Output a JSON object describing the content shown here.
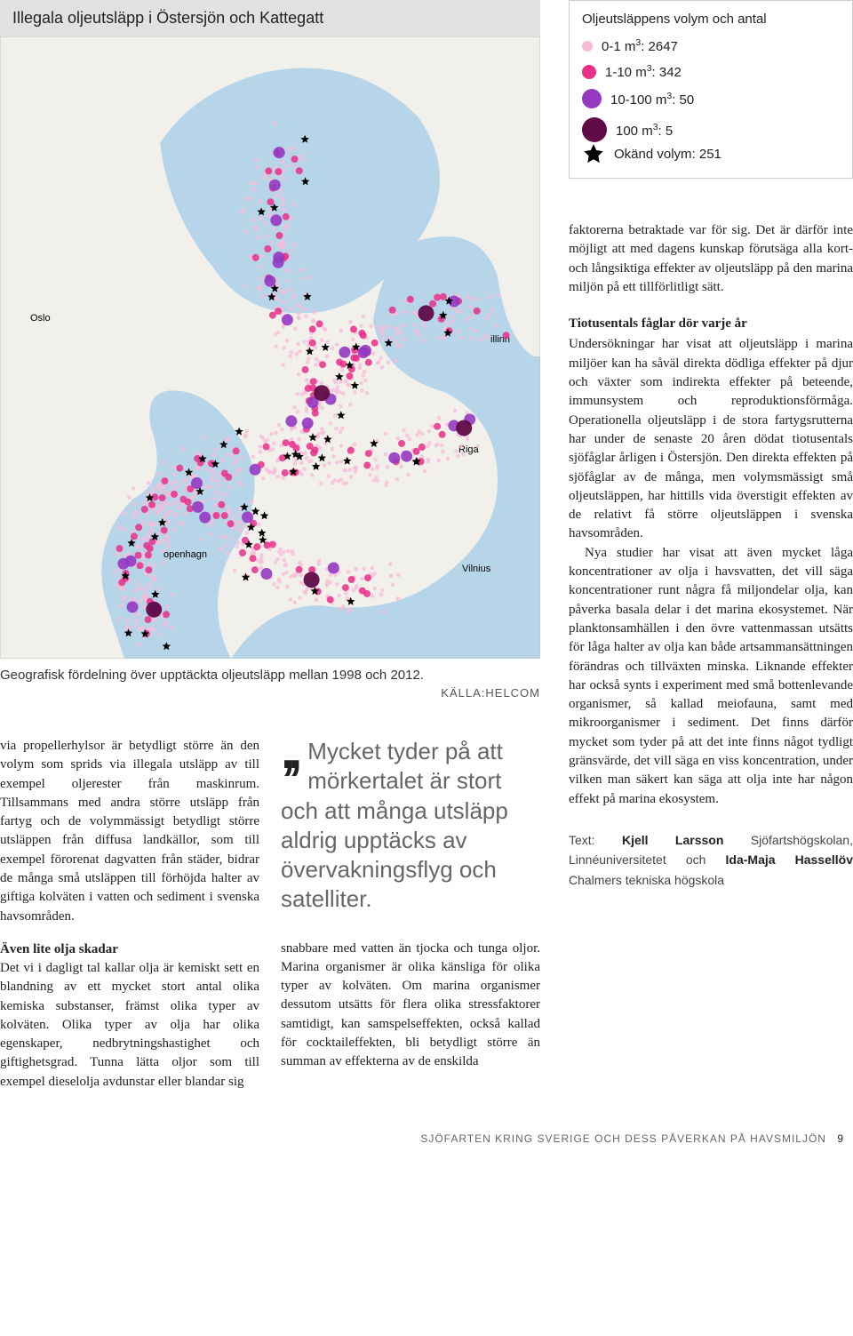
{
  "map": {
    "title": "Illegala oljeutsläpp i Östersjön och Kattegatt",
    "caption": "Geografisk fördelning över upptäckta oljeutsläpp mellan 1998 och 2012.",
    "source": "KÄLLA:HELCOM",
    "bg_land": "#f2f0eb",
    "bg_sea": "#b7d5e8",
    "border_color": "#bfbfbf",
    "labels": {
      "oslo": "Oslo",
      "riga": "Riga",
      "vilnius": "Vilnius",
      "copenhagen": "openhagn",
      "tallinn": "illinn"
    },
    "label_color": "#000000",
    "label_fontsize": 11
  },
  "legend": {
    "title": "Oljeutsläppens volym och antal",
    "items": [
      {
        "size": 12,
        "color": "#f7bcd9",
        "label_pre": "0-1 m",
        "label_post": ": 2647"
      },
      {
        "size": 16,
        "color": "#ea2f8b",
        "label_pre": "1-10 m",
        "label_post": ": 342"
      },
      {
        "size": 22,
        "color": "#9538c2",
        "label_pre": "10-100 m",
        "label_post": ": 50"
      },
      {
        "size": 28,
        "color": "#5e0b47",
        "label_pre": "100 m",
        "label_post": ": 5"
      }
    ],
    "star": {
      "color": "#000000",
      "label": "Okänd volym: 251"
    }
  },
  "spill_points": {
    "tiny": {
      "color": "#f7bcd9",
      "r": 2.3,
      "opacity": 0.75
    },
    "small": {
      "color": "#ea2f8b",
      "r": 4.0,
      "opacity": 0.85
    },
    "medium": {
      "color": "#9538c2",
      "r": 6.5,
      "opacity": 0.9
    },
    "large": {
      "color": "#5e0b47",
      "r": 9.0,
      "opacity": 0.95
    },
    "star": {
      "color": "#000000",
      "size": 10
    }
  },
  "body": {
    "col1_para": "via propellerhylsor är betydligt större än den volym som sprids via illegala utsläpp av till exempel oljerester från maskinrum. Tillsammans med andra större utsläpp från fartyg och de volymmässigt betydligt större utsläppen från diffusa landkällor, som till exempel förorenat dagvatten från städer, bidrar de många små utsläppen till förhöjda halter av giftiga kolväten i vatten och sediment i svenska havsområden.",
    "col1_h": "Även lite olja skadar",
    "col1_para2": "Det vi i dagligt tal kallar olja är kemiskt sett en blandning av ett mycket stort antal olika kemiska substanser, främst olika typer av kolväten. Olika typer av olja har olika egenskaper, nedbrytningshastighet och giftighetsgrad. Tunna lätta oljor som till exempel dieselolja avdunstar eller blandar sig",
    "pullquote": "Mycket tyder på att mörkertalet är stort och att många utsläpp aldrig upptäcks av övervakningsflyg och satelliter.",
    "col2_para": "snabbare med vatten än tjocka och tunga oljor. Marina organismer är olika känsliga för olika typer av kolväten. Om marina organismer dessutom utsätts för flera olika stressfaktorer samtidigt, kan samspelseffekten, också kallad för cocktaileffekten, bli betydligt större än summan av effekterna av de enskilda"
  },
  "side": {
    "para1": "faktorerna betraktade var för sig. Det är därför inte möjligt att med dagens kunskap förutsäga alla kort- och långsiktiga effekter av oljeutsläpp på den marina miljön på ett tillförlitligt sätt.",
    "h": "Tiotusentals fåglar dör varje år",
    "para2": "Undersökningar har visat att oljeutsläpp i marina miljöer kan ha såväl direkta dödliga effekter på djur och växter som indirekta effekter på beteende, immunsystem och reproduktionsförmåga. Operationella oljeutsläpp i de stora fartygsrutterna har under de senaste 20 åren dödat tiotusentals sjöfåglar årligen i Östersjön. Den direkta effekten på sjöfåglar av de många, men volymsmässigt små oljeutsläppen, har hittills vida överstigit effekten av de relativt få större oljeutsläppen i svenska havsområden.",
    "para3": "Nya studier har visat att även mycket låga koncentrationer av olja i havsvatten, det vill säga koncentrationer runt några få miljondelar olja, kan påverka basala delar i det marina ekosystemet. När planktonsamhällen i den övre vattenmassan utsätts för låga halter av olja kan både artsammansättningen förändras och tillväxten minska. Liknande effekter har också synts i experiment med små bottenlevande organismer, så kallad meiofauna, samt med mikroorganismer i sediment. Det finns därför mycket som tyder på att det inte finns något tydligt gränsvärde, det vill säga en viss koncentration, under vilken man säkert kan säga att olja inte har någon effekt på marina ekosystem.",
    "authors_pre": "Text: ",
    "author1": "Kjell Larsson",
    "author1_aff": " Sjöfartshögskolan, Linnéuniversitetet och ",
    "author2": "Ida-Maja Hassellöv",
    "author2_aff": " Chalmers tekniska högskola"
  },
  "footer": {
    "text": "SJÖFARTEN KRING SVERIGE OCH DESS PÅVERKAN PÅ HAVSMILJÖN",
    "page": "9"
  }
}
